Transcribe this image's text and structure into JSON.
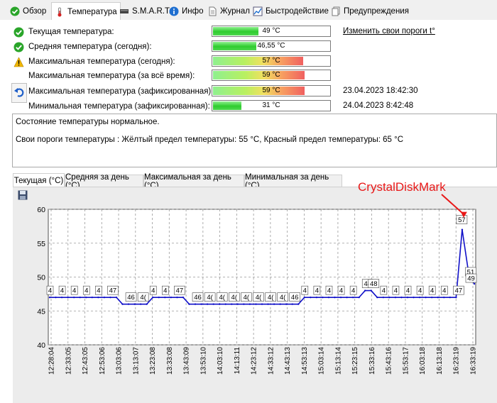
{
  "tabs": [
    {
      "label": "Обзор",
      "icon": "check-circle-icon"
    },
    {
      "label": "Температура",
      "icon": "thermometer-icon"
    },
    {
      "label": "S.M.A.R.T.",
      "icon": "drive-icon"
    },
    {
      "label": "Инфо",
      "icon": "info-icon"
    },
    {
      "label": "Журнал",
      "icon": "document-icon"
    },
    {
      "label": "Быстродействие",
      "icon": "chart-icon"
    },
    {
      "label": "Предупреждения",
      "icon": "pages-icon"
    }
  ],
  "temps": [
    {
      "label": "Текущая температура:",
      "value": "49 °C",
      "status": "ok",
      "fill": 0.4,
      "style": "green"
    },
    {
      "label": "Средняя температура (сегодня):",
      "value": "46,55 °C",
      "status": "ok",
      "fill": 0.38,
      "style": "green"
    },
    {
      "label": "Максимальная температура (сегодня):",
      "value": "57 °C",
      "status": "warn",
      "fill": 0.78,
      "style": "warm"
    },
    {
      "label": "Максимальная температура (за всё время):",
      "value": "59 °C",
      "status": "none",
      "fill": 0.79,
      "style": "warm"
    },
    {
      "label": "Максимальная температура (зафиксированная):",
      "value": "59 °C",
      "status": "none",
      "fill": 0.79,
      "style": "warm",
      "date": "23.04.2023 18:42:30"
    },
    {
      "label": "Минимальная температура (зафиксированная):",
      "value": "31 °C",
      "status": "none",
      "fill": 0.25,
      "style": "green",
      "date": "24.04.2023 8:42:48"
    }
  ],
  "link_label": "Изменить свои пороги t°",
  "state": {
    "line1": "Состояние температуры нормальное.",
    "line2": "Свои пороги температуры : Жёлтый предел температуры: 55 °C, Красный предел температуры: 65 °C"
  },
  "chart_tabs": [
    "Текущая (°C)",
    "Средняя за день (°C)",
    "Максимальная за день (°C)",
    "Минимальная за день (°C)"
  ],
  "annotation": "CrystalDiskMark",
  "colors": {
    "ok": "#2aa52a",
    "warn": "#f2b800",
    "series": "#1010c8",
    "annotation": "#e81818",
    "link": "#000000"
  },
  "chart_data": {
    "type": "line",
    "ylim": [
      40,
      60
    ],
    "yticks": [
      40,
      45,
      50,
      55,
      60
    ],
    "xticks": [
      "12:28:04",
      "12:33:05",
      "12:43:05",
      "12:53:06",
      "13:03:06",
      "13:13:07",
      "13:23:08",
      "13:33:08",
      "13:43:09",
      "13:53:10",
      "14:03:10",
      "14:13:11",
      "14:23:12",
      "14:33:12",
      "14:43:13",
      "14:53:13",
      "15:03:14",
      "15:13:14",
      "15:23:15",
      "15:33:16",
      "15:43:16",
      "15:53:17",
      "16:03:18",
      "16:13:18",
      "16:23:19",
      "16:33:19"
    ],
    "series": [
      {
        "values": [
          47,
          47,
          47,
          47,
          47,
          47,
          47,
          47,
          47,
          47,
          47,
          47,
          46,
          46,
          46,
          46,
          46,
          47,
          47,
          47,
          47,
          47,
          47,
          46,
          46,
          46,
          46,
          46,
          46,
          46,
          46,
          46,
          46,
          46,
          46,
          46,
          46,
          46,
          46,
          46,
          46,
          46,
          47,
          47,
          47,
          47,
          47,
          47,
          47,
          47,
          47,
          47,
          48,
          48,
          47,
          47,
          47,
          47,
          47,
          47,
          47,
          47,
          47,
          47,
          47,
          47,
          47,
          47,
          57,
          51,
          49
        ]
      }
    ],
    "data_labels": [
      {
        "index": 0,
        "text": "4"
      },
      {
        "index": 2,
        "text": "4"
      },
      {
        "index": 4,
        "text": "4"
      },
      {
        "index": 6,
        "text": "4"
      },
      {
        "index": 8,
        "text": "4"
      },
      {
        "index": 10,
        "text": "47"
      },
      {
        "index": 13,
        "text": "46"
      },
      {
        "index": 15,
        "text": "4("
      },
      {
        "index": 17,
        "text": "4"
      },
      {
        "index": 19,
        "text": "4"
      },
      {
        "index": 21,
        "text": "47"
      },
      {
        "index": 24,
        "text": "46"
      },
      {
        "index": 26,
        "text": "4("
      },
      {
        "index": 28,
        "text": "4("
      },
      {
        "index": 30,
        "text": "4("
      },
      {
        "index": 32,
        "text": "4("
      },
      {
        "index": 34,
        "text": "4("
      },
      {
        "index": 36,
        "text": "4("
      },
      {
        "index": 38,
        "text": "4("
      },
      {
        "index": 40,
        "text": "46"
      },
      {
        "index": 42,
        "text": "4"
      },
      {
        "index": 44,
        "text": "4"
      },
      {
        "index": 46,
        "text": "4"
      },
      {
        "index": 48,
        "text": "4"
      },
      {
        "index": 50,
        "text": "4"
      },
      {
        "index": 52,
        "text": "48"
      },
      {
        "index": 53,
        "text": "48"
      },
      {
        "index": 55,
        "text": "4"
      },
      {
        "index": 57,
        "text": "4"
      },
      {
        "index": 59,
        "text": "4"
      },
      {
        "index": 61,
        "text": "4"
      },
      {
        "index": 63,
        "text": "4"
      },
      {
        "index": 65,
        "text": "4"
      },
      {
        "index": 67,
        "text": "47"
      },
      {
        "index": 68,
        "text": "57"
      },
      {
        "index": 69,
        "text": "51"
      },
      {
        "index": 70,
        "text": "49"
      }
    ],
    "grid": true
  }
}
